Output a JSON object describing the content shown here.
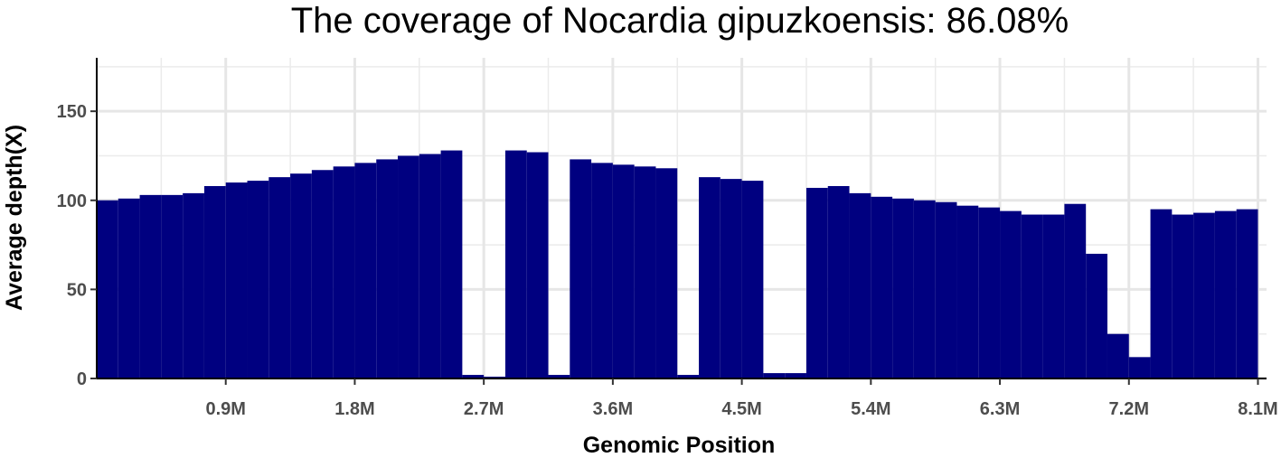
{
  "chart_data": {
    "type": "bar",
    "title": "The coverage of Nocardia gipuzkoensis: 86.08%",
    "xlabel": "Genomic Position",
    "ylabel": "Average depth(X)",
    "xlim": [
      0,
      8160000
    ],
    "ylim": [
      0,
      180
    ],
    "x_ticks": [
      {
        "value": 900000,
        "label": "0.9M"
      },
      {
        "value": 1800000,
        "label": "1.8M"
      },
      {
        "value": 2700000,
        "label": "2.7M"
      },
      {
        "value": 3600000,
        "label": "3.6M"
      },
      {
        "value": 4500000,
        "label": "4.5M"
      },
      {
        "value": 5400000,
        "label": "5.4M"
      },
      {
        "value": 6300000,
        "label": "6.3M"
      },
      {
        "value": 7200000,
        "label": "7.2M"
      },
      {
        "value": 8100000,
        "label": "8.1M"
      }
    ],
    "y_ticks": [
      {
        "value": 0,
        "label": "0"
      },
      {
        "value": 50,
        "label": "50"
      },
      {
        "value": 100,
        "label": "100"
      },
      {
        "value": 150,
        "label": "150"
      }
    ],
    "grid": true,
    "series": [
      {
        "bar_color": "#000080",
        "bin_width": 150000,
        "x": [
          75000,
          225000,
          375000,
          525000,
          675000,
          825000,
          975000,
          1125000,
          1275000,
          1425000,
          1575000,
          1725000,
          1875000,
          2025000,
          2175000,
          2325000,
          2475000,
          2625000,
          2775000,
          2925000,
          3075000,
          3225000,
          3375000,
          3525000,
          3675000,
          3825000,
          3975000,
          4125000,
          4275000,
          4425000,
          4575000,
          4725000,
          4875000,
          5025000,
          5175000,
          5325000,
          5475000,
          5625000,
          5775000,
          5925000,
          6075000,
          6225000,
          6375000,
          6525000,
          6675000,
          6825000,
          6975000,
          7125000,
          7275000,
          7425000,
          7575000,
          7725000,
          7875000,
          8025000
        ],
        "values": [
          100,
          101,
          103,
          103,
          104,
          108,
          110,
          111,
          113,
          115,
          117,
          119,
          121,
          123,
          125,
          126,
          128,
          2,
          1,
          128,
          127,
          2,
          123,
          121,
          120,
          119,
          118,
          2,
          113,
          112,
          111,
          3,
          3,
          107,
          108,
          104,
          102,
          101,
          100,
          99,
          97,
          96,
          94,
          92,
          92,
          98,
          70,
          25,
          12,
          95,
          92,
          93,
          94,
          95
        ]
      }
    ]
  }
}
